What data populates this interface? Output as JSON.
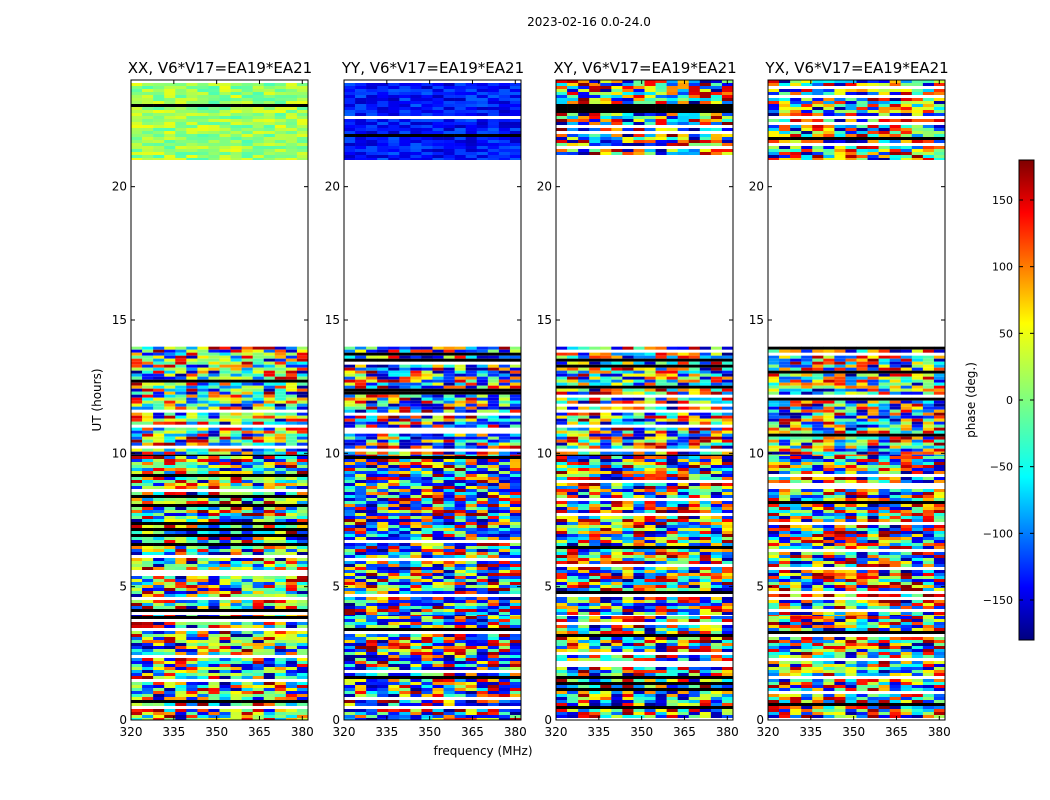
{
  "chart_data": {
    "type": "heatmap",
    "title": "2023-02-16 0.0-24.0",
    "xlabel": "frequency (MHz)",
    "ylabel": "UT (hours)",
    "xlim": [
      320,
      382
    ],
    "ylim": [
      0,
      24
    ],
    "x_ticks": [
      "320",
      "335",
      "350",
      "365",
      "380"
    ],
    "x_tick_values": [
      320,
      335,
      350,
      365,
      380
    ],
    "y_ticks": [
      "0",
      "5",
      "10",
      "15",
      "20"
    ],
    "y_tick_values": [
      0,
      5,
      10,
      15,
      20
    ],
    "panels": [
      {
        "name": "xx",
        "title": "XX, V6*V17=EA19*EA21",
        "base_phase": 10
      },
      {
        "name": "yy",
        "title": "YY, V6*V17=EA19*EA21",
        "base_phase": -130
      },
      {
        "name": "xy",
        "title": "XY, V6*V17=EA19*EA21",
        "base_phase": 0
      },
      {
        "name": "yx",
        "title": "YX, V6*V17=EA19*EA21",
        "base_phase": 0
      }
    ],
    "data_time_ranges_hours": [
      [
        0,
        3.9
      ],
      [
        3.9,
        9.9
      ],
      [
        9.9,
        14.0
      ],
      [
        21.0,
        24.0
      ]
    ],
    "colorbar": {
      "label": "phase (deg.)",
      "range": [
        -180,
        180
      ],
      "ticks": [
        "150",
        "100",
        "50",
        "0",
        "−50",
        "−100",
        "−150"
      ],
      "tick_values": [
        150,
        100,
        50,
        0,
        -50,
        -100,
        -150
      ],
      "colormap": "jet"
    }
  }
}
